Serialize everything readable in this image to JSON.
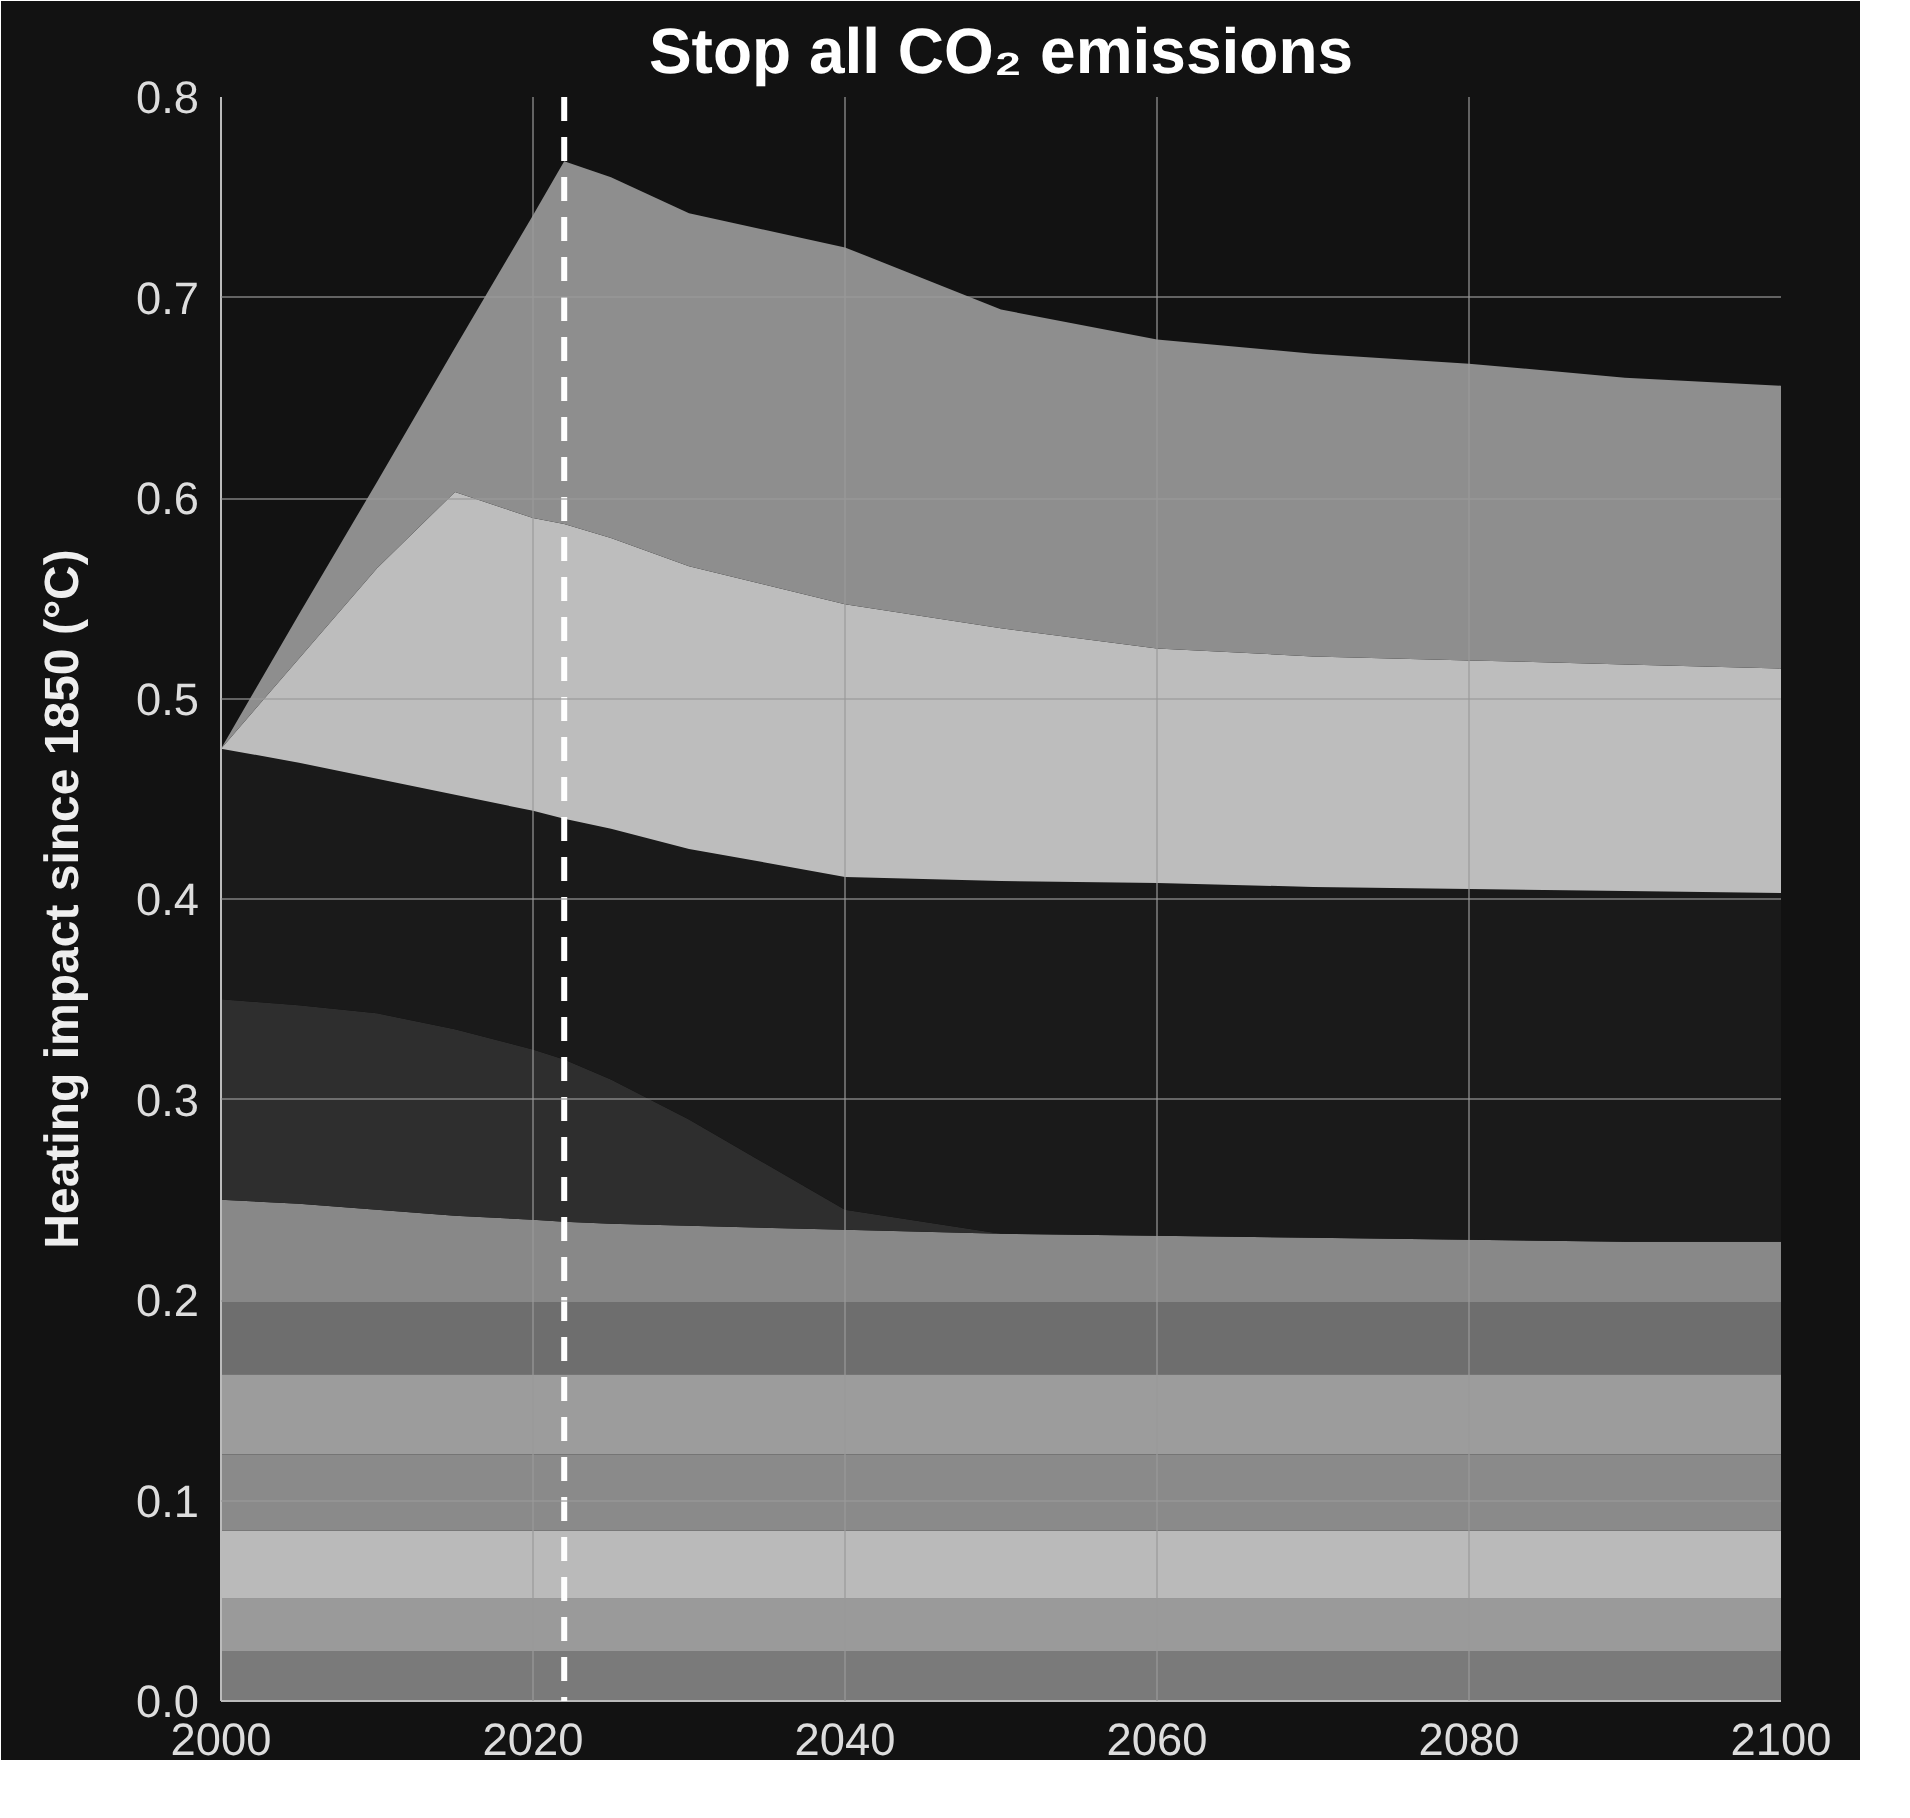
{
  "chart_data": {
    "type": "area",
    "stacked": true,
    "title": "Stop all CO₂ emissions",
    "ylabel": "Heating impact since 1850 (°C)",
    "x": [
      2000,
      2005,
      2010,
      2015,
      2020,
      2022,
      2025,
      2030,
      2040,
      2050,
      2060,
      2070,
      2080,
      2090,
      2100
    ],
    "series": [
      {
        "color": "#7a7a7a",
        "values": [
          0.025,
          0.025,
          0.025,
          0.025,
          0.025,
          0.025,
          0.025,
          0.025,
          0.025,
          0.025,
          0.025,
          0.025,
          0.025,
          0.025,
          0.025
        ]
      },
      {
        "color": "#9a9a9a",
        "values": [
          0.026,
          0.026,
          0.026,
          0.026,
          0.026,
          0.026,
          0.026,
          0.026,
          0.026,
          0.026,
          0.026,
          0.026,
          0.026,
          0.026,
          0.026
        ]
      },
      {
        "color": "#bababa",
        "values": [
          0.034,
          0.034,
          0.034,
          0.034,
          0.034,
          0.034,
          0.034,
          0.034,
          0.034,
          0.034,
          0.034,
          0.034,
          0.034,
          0.034,
          0.034
        ]
      },
      {
        "color": "#8a8a8a",
        "values": [
          0.038,
          0.038,
          0.038,
          0.038,
          0.038,
          0.038,
          0.038,
          0.038,
          0.038,
          0.038,
          0.038,
          0.038,
          0.038,
          0.038,
          0.038
        ]
      },
      {
        "color": "#9c9c9c",
        "values": [
          0.04,
          0.04,
          0.04,
          0.04,
          0.04,
          0.04,
          0.04,
          0.04,
          0.04,
          0.04,
          0.04,
          0.04,
          0.04,
          0.04,
          0.04
        ]
      },
      {
        "color": "#6e6e6e",
        "values": [
          0.037,
          0.037,
          0.037,
          0.037,
          0.037,
          0.037,
          0.037,
          0.037,
          0.037,
          0.037,
          0.037,
          0.037,
          0.037,
          0.037,
          0.037
        ]
      },
      {
        "color": "#888888",
        "values": [
          0.05,
          0.048,
          0.045,
          0.042,
          0.04,
          0.039,
          0.038,
          0.037,
          0.035,
          0.033,
          0.032,
          0.031,
          0.03,
          0.029,
          0.029
        ]
      },
      {
        "color": "#2e2e2e",
        "values": [
          0.1,
          0.099,
          0.098,
          0.093,
          0.085,
          0.081,
          0.072,
          0.053,
          0.01,
          0,
          0,
          0,
          0,
          0,
          0
        ]
      },
      {
        "color": "#1a1a1a",
        "values": [
          0.125,
          0.121,
          0.117,
          0.117,
          0.119,
          0.12,
          0.125,
          0.135,
          0.166,
          0.176,
          0.176,
          0.175,
          0.175,
          0.175,
          0.174
        ]
      },
      {
        "color": "#bdbdbd",
        "values": [
          0,
          0.052,
          0.105,
          0.151,
          0.146,
          0.147,
          0.145,
          0.141,
          0.136,
          0.126,
          0.117,
          0.115,
          0.114,
          0.113,
          0.112
        ]
      },
      {
        "color": "#8e8e8e",
        "values": [
          0,
          0.022,
          0.043,
          0.072,
          0.151,
          0.181,
          0.18,
          0.176,
          0.178,
          0.159,
          0.154,
          0.151,
          0.148,
          0.143,
          0.141
        ]
      }
    ],
    "xlim": [
      2000,
      2100
    ],
    "xticks": [
      2000,
      2020,
      2040,
      2060,
      2080,
      2100
    ],
    "ylim": [
      0,
      0.8
    ],
    "yticks": [
      {
        "value": 0,
        "label": "0.0"
      },
      0.1,
      0.2,
      0.3,
      0.4,
      0.5,
      0.6,
      0.7,
      0.8
    ],
    "ref_lines": [
      {
        "axis": "x",
        "value": 2022,
        "color": "#ffffff",
        "line_style": "dashed"
      }
    ],
    "grid": true
  }
}
